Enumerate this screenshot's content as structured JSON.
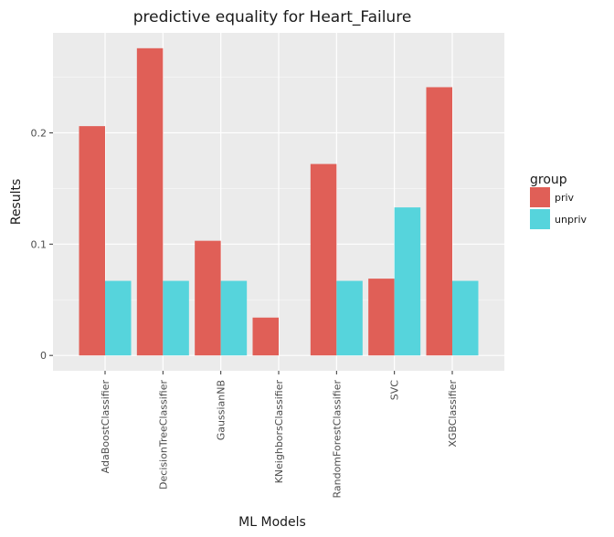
{
  "chart_data": {
    "type": "bar",
    "title": "predictive equality for Heart_Failure",
    "xlabel": "ML Models",
    "ylabel": "Results",
    "categories": [
      "AdaBoostClassifier",
      "DecisionTreeClassifier",
      "GaussianNB",
      "KNeighborsClassifier",
      "RandomForestClassifier",
      "SVC",
      "XGBClassifier"
    ],
    "series": [
      {
        "name": "priv",
        "color": "#e05f57",
        "values": [
          0.206,
          0.276,
          0.103,
          0.034,
          0.172,
          0.069,
          0.241
        ]
      },
      {
        "name": "unpriv",
        "color": "#56d4dc",
        "values": [
          0.067,
          0.067,
          0.067,
          0.0,
          0.067,
          0.133,
          0.067
        ]
      }
    ],
    "yticks": [
      0,
      0.1,
      0.2
    ],
    "ytick_labels": [
      "0",
      "0.1",
      "0.2"
    ],
    "ylim": [
      -0.0138,
      0.2898
    ],
    "grid": true,
    "legend": {
      "title": "group",
      "position": "right"
    },
    "panel_color": "#ebebeb"
  }
}
